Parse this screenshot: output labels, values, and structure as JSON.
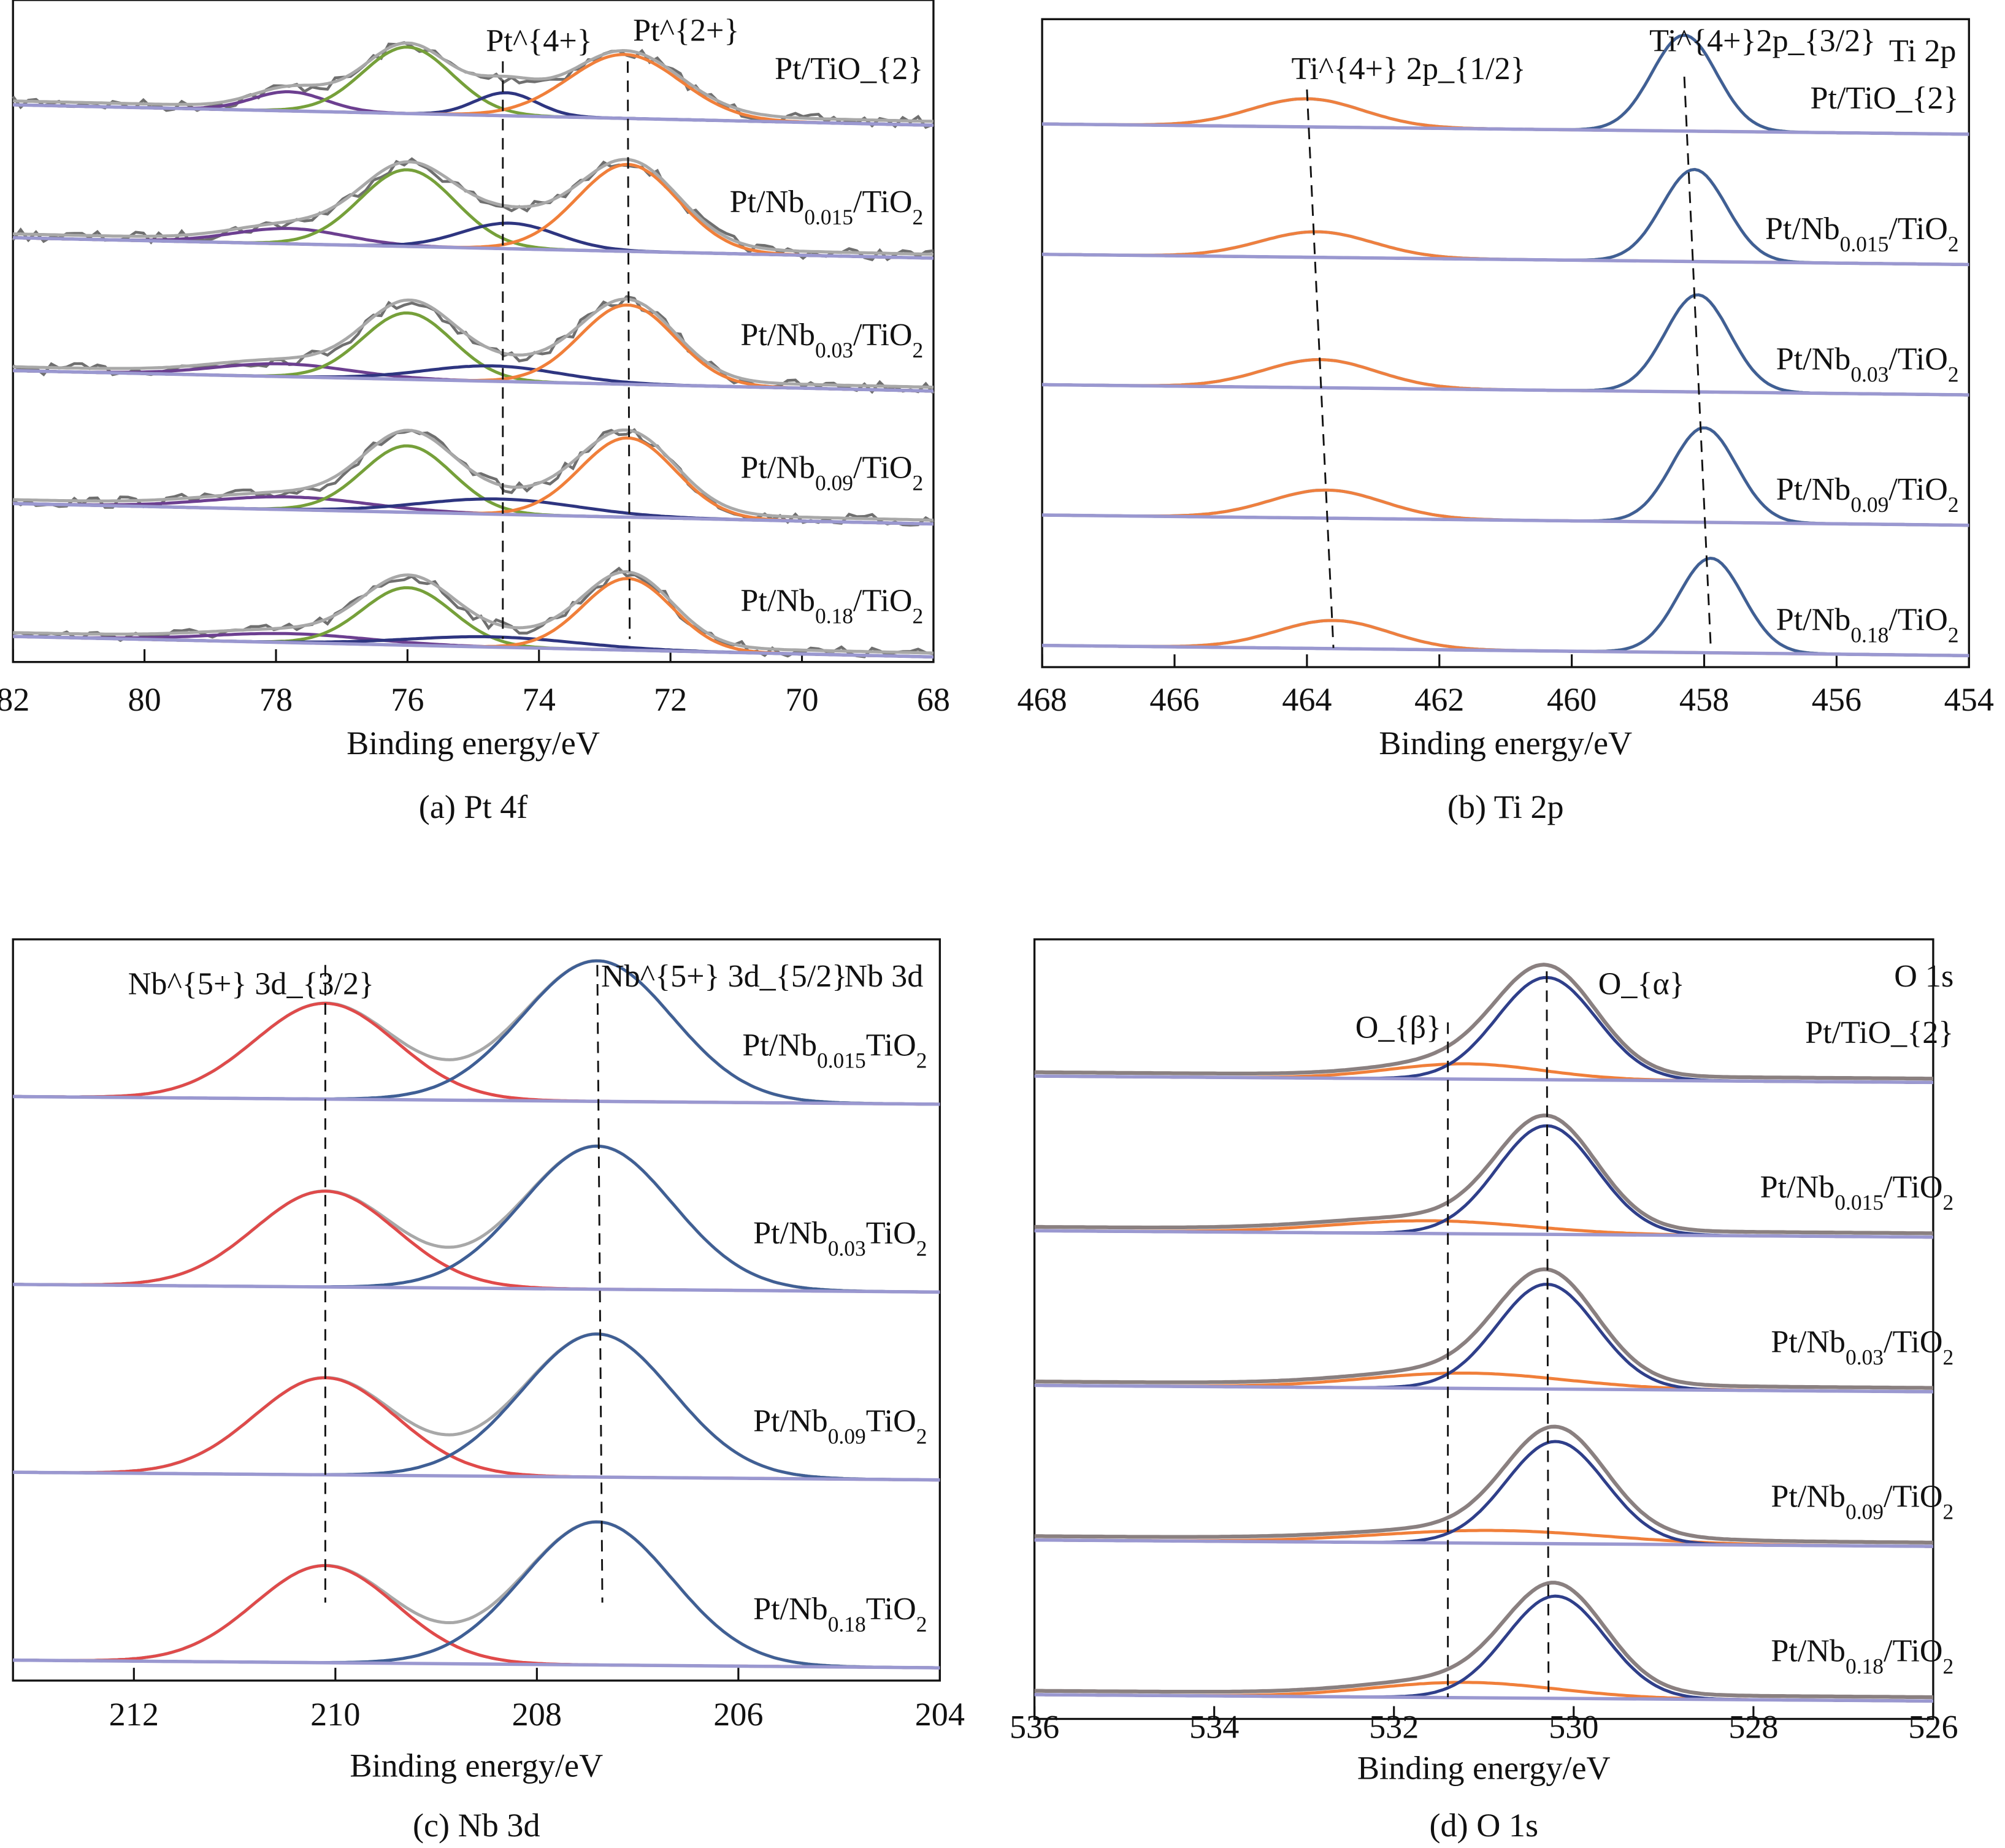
{
  "colors": {
    "raw": "#6f6f6f",
    "envelope": "#a8a8a8",
    "envelope_o1s": "#8a8080",
    "baseline": "#9a98d0",
    "pt_green": "#76a03a",
    "pt_orange": "#f07f3a",
    "pt_navy": "#2e3580",
    "pt_purple": "#6c3f90",
    "ti_blue": "#3f5f95",
    "ti_orange": "#ef7f3e",
    "nb_red": "#e04a4a",
    "nb_blue": "#3f5f95",
    "o_alpha": "#2f3f8a",
    "o_beta": "#f07f3a",
    "guide": "#111111"
  },
  "chart_data": [
    {
      "type": "line",
      "panel": "a",
      "caption": "(a) Pt 4f",
      "xlabel": "Binding energy/eV",
      "ylabel": "",
      "xlim": [
        82,
        68
      ],
      "xticks": [
        82,
        80,
        78,
        76,
        74,
        72,
        70,
        68
      ],
      "raw_noisy": true,
      "annotations": [
        "Pt^{4+}",
        "Pt^{2+}"
      ],
      "guide_lines": [
        {
          "top": 74.55,
          "bottom": 74.55
        },
        {
          "top": 72.65,
          "bottom": 72.62
        }
      ],
      "spectra": [
        {
          "label": "Pt/TiO_{2}",
          "components": [
            {
              "center": 77.8,
              "height": 15,
              "fwhm": 1.3,
              "color": "pt_purple"
            },
            {
              "center": 76.0,
              "height": 52,
              "fwhm": 1.6,
              "color": "pt_green"
            },
            {
              "center": 74.5,
              "height": 18,
              "fwhm": 1.1,
              "color": "pt_navy"
            },
            {
              "center": 72.7,
              "height": 50,
              "fwhm": 2.0,
              "color": "pt_orange"
            }
          ]
        },
        {
          "label": "Pt/Nb_{0.015}/TiO_{2}",
          "components": [
            {
              "center": 77.8,
              "height": 12,
              "fwhm": 2.0,
              "color": "pt_purple"
            },
            {
              "center": 76.0,
              "height": 60,
              "fwhm": 1.7,
              "color": "pt_green"
            },
            {
              "center": 74.45,
              "height": 20,
              "fwhm": 1.7,
              "color": "pt_navy"
            },
            {
              "center": 72.65,
              "height": 68,
              "fwhm": 1.8,
              "color": "pt_orange"
            }
          ]
        },
        {
          "label": "Pt/Nb_{0.03}/TiO_{2}",
          "components": [
            {
              "center": 77.9,
              "height": 10,
              "fwhm": 2.4,
              "color": "pt_purple"
            },
            {
              "center": 76.0,
              "height": 52,
              "fwhm": 1.6,
              "color": "pt_green"
            },
            {
              "center": 74.7,
              "height": 12,
              "fwhm": 2.4,
              "color": "pt_navy"
            },
            {
              "center": 72.65,
              "height": 62,
              "fwhm": 1.7,
              "color": "pt_orange"
            }
          ]
        },
        {
          "label": "Pt/Nb_{0.09}/TiO_{2}",
          "components": [
            {
              "center": 77.8,
              "height": 10,
              "fwhm": 2.8,
              "color": "pt_purple"
            },
            {
              "center": 76.0,
              "height": 52,
              "fwhm": 1.6,
              "color": "pt_green"
            },
            {
              "center": 74.6,
              "height": 12,
              "fwhm": 2.8,
              "color": "pt_navy"
            },
            {
              "center": 72.65,
              "height": 62,
              "fwhm": 1.7,
              "color": "pt_orange"
            }
          ]
        },
        {
          "label": "Pt/Nb_{0.18}/TiO_{2}",
          "components": [
            {
              "center": 77.8,
              "height": 7,
              "fwhm": 2.8,
              "color": "pt_purple"
            },
            {
              "center": 76.0,
              "height": 45,
              "fwhm": 1.6,
              "color": "pt_green"
            },
            {
              "center": 74.7,
              "height": 8,
              "fwhm": 3.0,
              "color": "pt_navy"
            },
            {
              "center": 72.65,
              "height": 56,
              "fwhm": 1.6,
              "color": "pt_orange"
            }
          ]
        }
      ]
    },
    {
      "type": "line",
      "panel": "b",
      "caption": "(b) Ti 2p",
      "xlabel": "Binding energy/eV",
      "ylabel": "",
      "xlim": [
        468,
        454
      ],
      "xticks": [
        468,
        466,
        464,
        462,
        460,
        458,
        456,
        454
      ],
      "raw_noisy": false,
      "annotations": [
        "Ti^{4+}  2p_{1/2}",
        "Ti^{4+}2p_{3/2}",
        "Ti 2p"
      ],
      "guide_lines": [
        {
          "top": 464.0,
          "bottom": 463.6
        },
        {
          "top": 458.3,
          "bottom": 457.9
        }
      ],
      "spectra": [
        {
          "label": "Pt/TiO_{2}",
          "components": [
            {
              "center": 464.0,
              "height": 22,
              "fwhm": 2.0,
              "color": "ti_orange"
            },
            {
              "center": 458.3,
              "height": 75,
              "fwhm": 1.15,
              "color": "ti_blue"
            }
          ]
        },
        {
          "label": "Pt/Nb_{0.015}/TiO_{2}",
          "components": [
            {
              "center": 463.85,
              "height": 20,
              "fwhm": 2.0,
              "color": "ti_orange"
            },
            {
              "center": 458.15,
              "height": 72,
              "fwhm": 1.15,
              "color": "ti_blue"
            }
          ]
        },
        {
          "label": "Pt/Nb_{0.03}/TiO_{2}",
          "components": [
            {
              "center": 463.8,
              "height": 22,
              "fwhm": 2.0,
              "color": "ti_orange"
            },
            {
              "center": 458.1,
              "height": 76,
              "fwhm": 1.15,
              "color": "ti_blue"
            }
          ]
        },
        {
          "label": "Pt/Nb_{0.09}/TiO_{2}",
          "components": [
            {
              "center": 463.7,
              "height": 22,
              "fwhm": 2.0,
              "color": "ti_orange"
            },
            {
              "center": 458.0,
              "height": 74,
              "fwhm": 1.15,
              "color": "ti_blue"
            }
          ]
        },
        {
          "label": "Pt/Nb_{0.18}/TiO_{2}",
          "components": [
            {
              "center": 463.6,
              "height": 22,
              "fwhm": 2.0,
              "color": "ti_orange"
            },
            {
              "center": 457.9,
              "height": 74,
              "fwhm": 1.15,
              "color": "ti_blue"
            }
          ]
        }
      ]
    },
    {
      "type": "line",
      "panel": "c",
      "caption": "(c) Nb 3d",
      "xlabel": "Binding energy/eV",
      "ylabel": "",
      "xlim": [
        213.2,
        204
      ],
      "xticks": [
        212,
        210,
        208,
        206,
        204
      ],
      "raw_noisy": false,
      "annotations": [
        "Nb^{5+} 3d_{3/2}",
        "Nb^{5+} 3d_{5/2}",
        "Nb 3d"
      ],
      "guide_lines": [
        {
          "top": 210.1,
          "bottom": 210.1
        },
        {
          "top": 207.4,
          "bottom": 207.35
        }
      ],
      "spectra": [
        {
          "label": "Pt/Nb_{0.015}TiO_{2}",
          "components": [
            {
              "center": 210.1,
              "height": 75,
              "fwhm": 1.65,
              "color": "nb_red"
            },
            {
              "center": 207.4,
              "height": 110,
              "fwhm": 1.75,
              "color": "nb_blue"
            }
          ]
        },
        {
          "label": "Pt/Nb_{0.03}TiO_{2}",
          "components": [
            {
              "center": 210.1,
              "height": 75,
              "fwhm": 1.65,
              "color": "nb_red"
            },
            {
              "center": 207.4,
              "height": 112,
              "fwhm": 1.75,
              "color": "nb_blue"
            }
          ]
        },
        {
          "label": "Pt/Nb_{0.09}TiO_{2}",
          "components": [
            {
              "center": 210.1,
              "height": 76,
              "fwhm": 1.65,
              "color": "nb_red"
            },
            {
              "center": 207.4,
              "height": 112,
              "fwhm": 1.75,
              "color": "nb_blue"
            }
          ]
        },
        {
          "label": "Pt/Nb_{0.18}TiO_{2}",
          "components": [
            {
              "center": 210.1,
              "height": 76,
              "fwhm": 1.65,
              "color": "nb_red"
            },
            {
              "center": 207.4,
              "height": 112,
              "fwhm": 1.75,
              "color": "nb_blue"
            }
          ]
        }
      ]
    },
    {
      "type": "line",
      "panel": "d",
      "caption": "(d) O 1s",
      "xlabel": "Binding energy/eV",
      "ylabel": "",
      "xlim": [
        536,
        526
      ],
      "xticks": [
        536,
        534,
        532,
        530,
        528,
        526
      ],
      "raw_noisy": false,
      "annotations": [
        "O 1s",
        "O_{α}",
        "O_{β}"
      ],
      "guide_lines": [
        {
          "top": 531.4,
          "bottom": 531.4
        },
        {
          "top": 530.3,
          "bottom": 530.28
        }
      ],
      "spectra": [
        {
          "label": "Pt/TiO_{2}",
          "components": [
            {
              "center": 531.2,
              "height": 12,
              "fwhm": 2.0,
              "color": "o_beta"
            },
            {
              "center": 530.3,
              "height": 80,
              "fwhm": 1.3,
              "color": "o_alpha"
            }
          ]
        },
        {
          "label": "Pt/Nb_{0.015}/TiO_{2}",
          "components": [
            {
              "center": 531.6,
              "height": 10,
              "fwhm": 2.6,
              "color": "o_beta"
            },
            {
              "center": 530.3,
              "height": 85,
              "fwhm": 1.3,
              "color": "o_alpha"
            }
          ]
        },
        {
          "label": "Pt/Nb_{0.03}/TiO_{2}",
          "components": [
            {
              "center": 531.2,
              "height": 12,
              "fwhm": 2.6,
              "color": "o_beta"
            },
            {
              "center": 530.3,
              "height": 82,
              "fwhm": 1.3,
              "color": "o_alpha"
            }
          ]
        },
        {
          "label": "Pt/Nb_{0.09}/TiO_{2}",
          "components": [
            {
              "center": 530.9,
              "height": 10,
              "fwhm": 3.0,
              "color": "o_beta"
            },
            {
              "center": 530.2,
              "height": 80,
              "fwhm": 1.3,
              "color": "o_alpha"
            }
          ]
        },
        {
          "label": "Pt/Nb_{0.18}/TiO_{2}",
          "components": [
            {
              "center": 531.2,
              "height": 12,
              "fwhm": 2.4,
              "color": "o_beta"
            },
            {
              "center": 530.2,
              "height": 80,
              "fwhm": 1.3,
              "color": "o_alpha"
            }
          ]
        }
      ]
    }
  ]
}
